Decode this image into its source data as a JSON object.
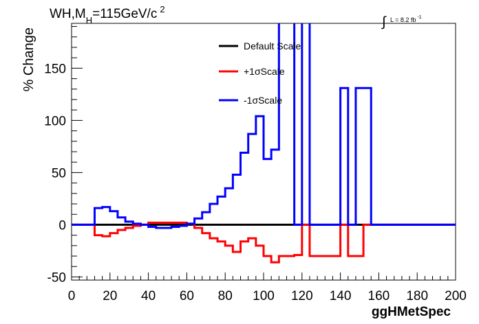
{
  "chart_data": {
    "type": "line",
    "title": "WH,M",
    "title_sub": "H",
    "title_tail": "=115GeV/c",
    "title_sup": "2",
    "lumi_symbol": "∫",
    "lumi_label": "L = 8.2 fb",
    "lumi_sup": "-1",
    "xlabel": "ggHMetSpec",
    "ylabel": "% Change",
    "xlim": [
      0,
      200
    ],
    "ylim": [
      -53,
      193
    ],
    "xticks": [
      "0",
      "20",
      "40",
      "60",
      "80",
      "100",
      "120",
      "140",
      "160",
      "180",
      "200"
    ],
    "yticks": [
      "-50",
      "0",
      "50",
      "100",
      "150"
    ],
    "xtick_values": [
      0,
      20,
      40,
      60,
      80,
      100,
      120,
      140,
      160,
      180,
      200
    ],
    "ytick_values": [
      -50,
      0,
      50,
      100,
      150
    ],
    "legend_position": "top-center",
    "grid": false,
    "bin_edges": [
      0,
      4,
      8,
      12,
      16,
      20,
      24,
      28,
      32,
      36,
      40,
      44,
      48,
      52,
      56,
      60,
      64,
      68,
      72,
      76,
      80,
      84,
      88,
      92,
      96,
      100,
      104,
      108,
      112,
      116,
      120,
      124,
      128,
      132,
      136,
      140,
      144,
      148,
      152,
      156,
      160,
      164,
      168,
      172,
      176,
      180,
      184,
      188,
      192,
      196,
      200
    ],
    "series": [
      {
        "name": "Default Scale",
        "color": "#000000",
        "values": [
          0,
          0,
          0,
          0,
          0,
          0,
          0,
          0,
          0,
          0,
          0,
          0,
          0,
          0,
          0,
          0,
          0,
          0,
          0,
          0,
          0,
          0,
          0,
          0,
          0,
          0,
          0,
          0,
          0,
          0,
          0,
          0,
          0,
          0,
          0,
          0,
          0,
          0,
          0,
          0,
          0,
          0,
          0,
          0,
          0,
          0,
          0,
          0,
          0,
          0
        ]
      },
      {
        "name": "+1σScale",
        "color": "#ff0000",
        "values": [
          0,
          0,
          0,
          -10,
          -11,
          -8,
          -5,
          -3,
          -1,
          0,
          2,
          2,
          2,
          2,
          2,
          1,
          -3,
          -8,
          -13,
          -16,
          -20,
          -26,
          -16,
          -13,
          -20,
          -30,
          -36,
          -30,
          -30,
          -29,
          0,
          -30,
          -30,
          -30,
          -30,
          0,
          -30,
          -30,
          0,
          0,
          0,
          0,
          0,
          0,
          0,
          0,
          0,
          0,
          0,
          0
        ]
      },
      {
        "name": "-1σScale",
        "color": "#0000ff",
        "values": [
          0,
          0,
          0,
          16,
          17,
          13,
          7,
          3,
          1,
          0,
          -2,
          -3,
          -3,
          -2,
          -1,
          1,
          6,
          12,
          20,
          27,
          35,
          48,
          69,
          87,
          104,
          63,
          72,
          210,
          210,
          0,
          210,
          0,
          0,
          0,
          0,
          131,
          0,
          131,
          131,
          0,
          0,
          0,
          0,
          0,
          0,
          0,
          0,
          0,
          0,
          0
        ]
      }
    ]
  }
}
